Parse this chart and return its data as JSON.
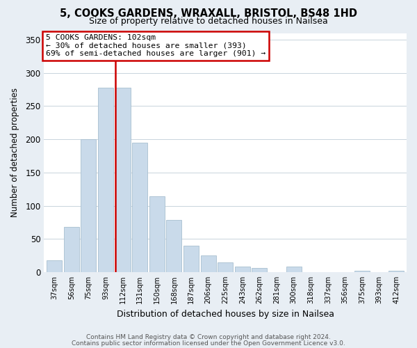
{
  "title": "5, COOKS GARDENS, WRAXALL, BRISTOL, BS48 1HD",
  "subtitle": "Size of property relative to detached houses in Nailsea",
  "xlabel": "Distribution of detached houses by size in Nailsea",
  "ylabel": "Number of detached properties",
  "bar_labels": [
    "37sqm",
    "56sqm",
    "75sqm",
    "93sqm",
    "112sqm",
    "131sqm",
    "150sqm",
    "168sqm",
    "187sqm",
    "206sqm",
    "225sqm",
    "243sqm",
    "262sqm",
    "281sqm",
    "300sqm",
    "318sqm",
    "337sqm",
    "356sqm",
    "375sqm",
    "393sqm",
    "412sqm"
  ],
  "bar_values": [
    18,
    68,
    200,
    278,
    278,
    195,
    114,
    79,
    40,
    25,
    15,
    8,
    6,
    0,
    8,
    0,
    0,
    0,
    2,
    0,
    2
  ],
  "bar_color": "#c9daea",
  "bar_edge_color": "#a8bfcf",
  "highlight_edge_color": "#cc0000",
  "red_line_bar_index": 4,
  "annotation_text": "5 COOKS GARDENS: 102sqm\n← 30% of detached houses are smaller (393)\n69% of semi-detached houses are larger (901) →",
  "annotation_box_edge": "#cc0000",
  "ylim": [
    0,
    360
  ],
  "yticks": [
    0,
    50,
    100,
    150,
    200,
    250,
    300,
    350
  ],
  "footer_line1": "Contains HM Land Registry data © Crown copyright and database right 2024.",
  "footer_line2": "Contains public sector information licensed under the Open Government Licence v3.0.",
  "background_color": "#e8eef4",
  "plot_bg_color": "#ffffff",
  "grid_color": "#c8d4dc"
}
